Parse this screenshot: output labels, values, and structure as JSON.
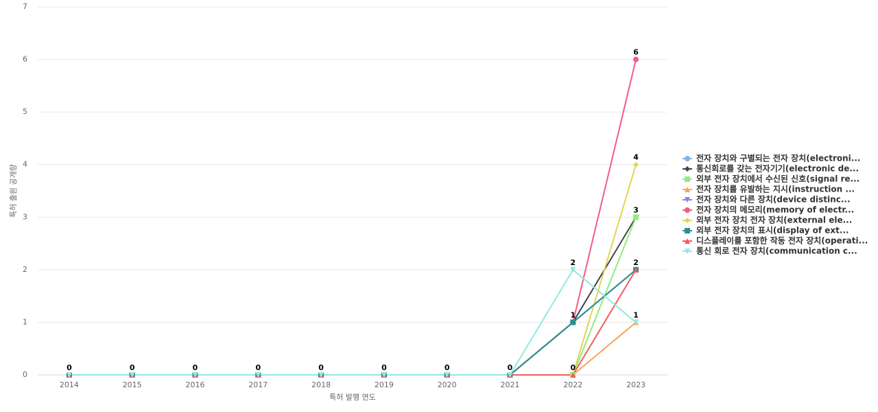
{
  "chart_data": {
    "type": "line",
    "x_label": "특허 발행 연도",
    "y_label": "특허 출원 공개량",
    "categories": [
      "2014",
      "2015",
      "2016",
      "2017",
      "2018",
      "2019",
      "2020",
      "2021",
      "2022",
      "2023"
    ],
    "ylim": [
      0,
      7
    ],
    "yticks": [
      0,
      1,
      2,
      3,
      4,
      5,
      6,
      7
    ],
    "grid": true,
    "series": [
      {
        "name": "전자 장치와 구별되는 전자 장치(electroni...",
        "color": "#7cb5ec",
        "values": [
          0,
          0,
          0,
          0,
          0,
          0,
          0,
          0,
          1,
          2
        ]
      },
      {
        "name": "통신회로를 갖는 전자기기(electronic de...",
        "color": "#434348",
        "values": [
          0,
          0,
          0,
          0,
          0,
          0,
          0,
          0,
          1,
          3
        ]
      },
      {
        "name": "외부 전자 장치에서 수신된 신호(signal re...",
        "color": "#90ed7d",
        "values": [
          0,
          0,
          0,
          0,
          0,
          0,
          0,
          0,
          0,
          3
        ]
      },
      {
        "name": "전자 장치를 유발하는 지시(instruction ...",
        "color": "#f7a35c",
        "values": [
          0,
          0,
          0,
          0,
          0,
          0,
          0,
          0,
          0,
          1
        ]
      },
      {
        "name": "전자 장치와 다른 장치(device distinc...",
        "color": "#8085e9",
        "values": [
          0,
          0,
          0,
          0,
          0,
          0,
          0,
          0,
          1,
          2
        ]
      },
      {
        "name": "전자 장치의 메모리(memory of electr...",
        "color": "#f15c80",
        "values": [
          0,
          0,
          0,
          0,
          0,
          0,
          0,
          0,
          1,
          6
        ]
      },
      {
        "name": "외부 전자 장치 전자 장치(external ele...",
        "color": "#e4d354",
        "values": [
          0,
          0,
          0,
          0,
          0,
          0,
          0,
          0,
          0,
          4
        ]
      },
      {
        "name": "외부 전자 장치의 표시(display of ext...",
        "color": "#2b908f",
        "values": [
          0,
          0,
          0,
          0,
          0,
          0,
          0,
          0,
          1,
          2
        ]
      },
      {
        "name": "디스플레이를 포함한 작동 전자 장치(operati...",
        "color": "#f45b5b",
        "values": [
          0,
          0,
          0,
          0,
          0,
          0,
          0,
          0,
          0,
          2
        ]
      },
      {
        "name": "통신 회로 전자 장치(communication c...",
        "color": "#91e8e1",
        "values": [
          0,
          0,
          0,
          0,
          0,
          0,
          0,
          0,
          2,
          1
        ]
      }
    ]
  }
}
